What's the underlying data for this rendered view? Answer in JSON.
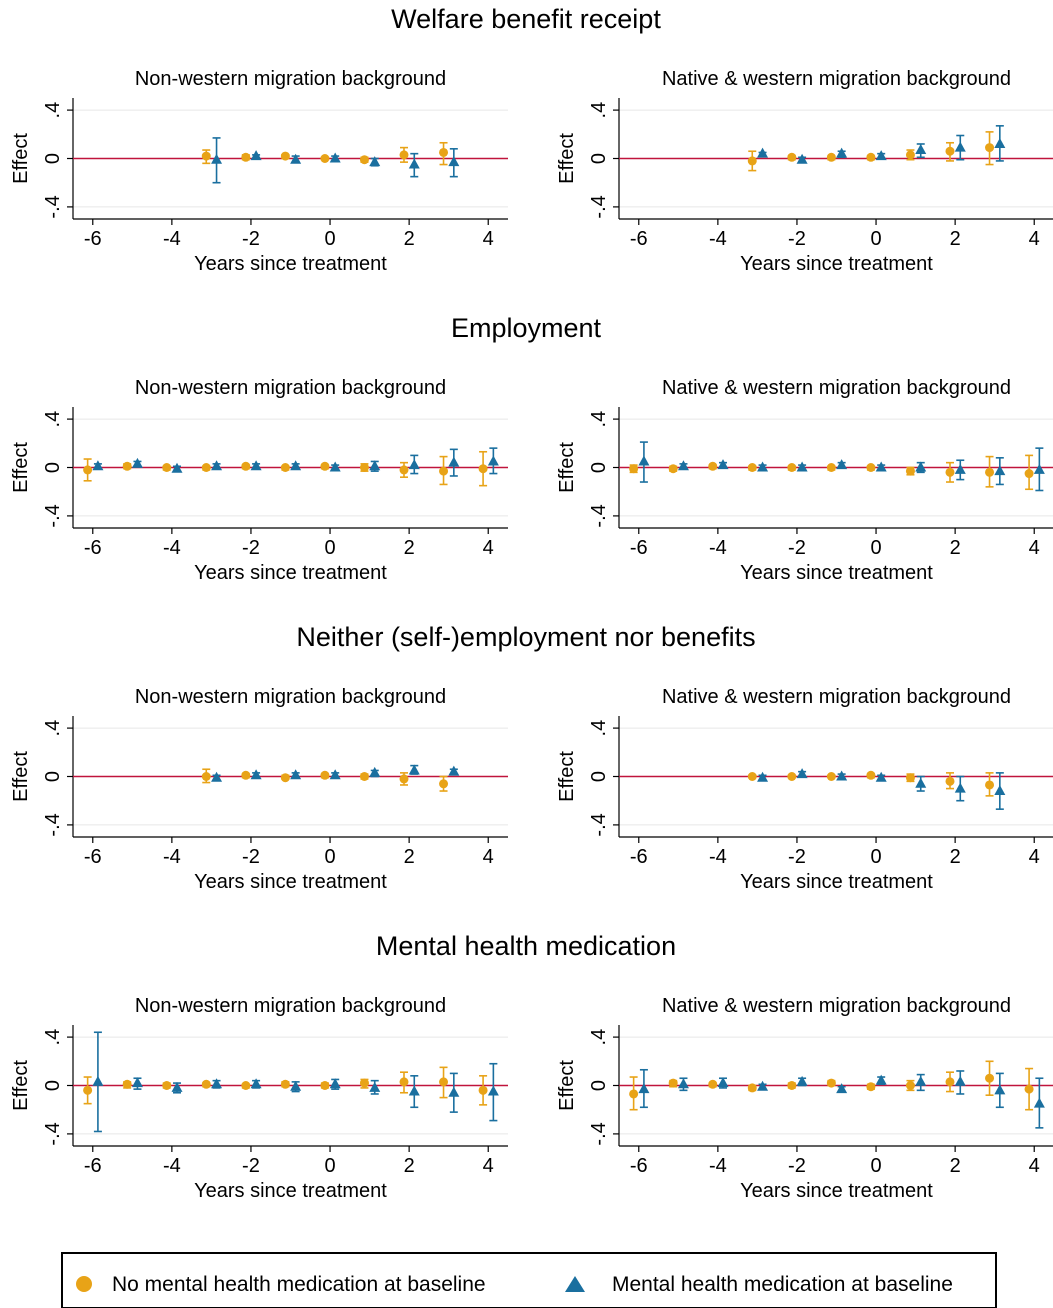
{
  "legend": {
    "series": [
      {
        "name": "No mental health medication at baseline",
        "color": "#E8A317",
        "marker": "circle"
      },
      {
        "name": "Mental health medication at baseline",
        "color": "#1A6F9F",
        "marker": "triangle"
      }
    ]
  },
  "colors": {
    "reference_line": "#C0143C",
    "grid": "#E6E6E6"
  },
  "chart_data": [
    {
      "type": "scatter",
      "title": "Welfare benefit receipt",
      "subtitle": "Non-western migration background",
      "xlabel": "Years since treatment",
      "ylabel": "Effect",
      "xlim": [
        -6.5,
        4.5
      ],
      "ylim": [
        -0.5,
        0.5
      ],
      "xticks": [
        "-6",
        "-4",
        "-2",
        "0",
        "2",
        "4"
      ],
      "yticks": [
        ".4",
        "0",
        "-.4"
      ],
      "reference_y": 0,
      "grid": true,
      "series": [
        {
          "name": "No mental health medication at baseline",
          "x": [
            -3,
            -2,
            -1,
            0,
            1,
            2,
            3
          ],
          "y": [
            0.02,
            0.01,
            0.02,
            0.0,
            -0.01,
            0.03,
            0.05
          ],
          "ci_low": [
            -0.04,
            -0.01,
            0.0,
            -0.01,
            -0.03,
            -0.03,
            -0.05
          ],
          "ci_high": [
            0.07,
            0.03,
            0.03,
            0.01,
            0.01,
            0.09,
            0.13
          ]
        },
        {
          "name": "Mental health medication at baseline",
          "x": [
            -3,
            -2,
            -1,
            0,
            1,
            2,
            3
          ],
          "y": [
            -0.01,
            0.02,
            -0.01,
            0.0,
            -0.03,
            -0.05,
            -0.03
          ],
          "ci_low": [
            -0.2,
            0.0,
            -0.03,
            -0.02,
            -0.06,
            -0.15,
            -0.15
          ],
          "ci_high": [
            0.17,
            0.03,
            0.02,
            0.02,
            0.0,
            0.04,
            0.08
          ]
        }
      ]
    },
    {
      "type": "scatter",
      "title": "Welfare benefit receipt",
      "subtitle": "Native & western migration background",
      "xlabel": "Years since treatment",
      "ylabel": "Effect",
      "xlim": [
        -6.5,
        4.5
      ],
      "ylim": [
        -0.5,
        0.5
      ],
      "xticks": [
        "-6",
        "-4",
        "-2",
        "0",
        "2",
        "4"
      ],
      "yticks": [
        ".4",
        "0",
        "-.4"
      ],
      "reference_y": 0,
      "grid": true,
      "series": [
        {
          "name": "No mental health medication at baseline",
          "x": [
            -3,
            -2,
            -1,
            0,
            1,
            2,
            3
          ],
          "y": [
            -0.02,
            0.01,
            0.01,
            0.01,
            0.03,
            0.06,
            0.09
          ],
          "ci_low": [
            -0.1,
            -0.01,
            -0.01,
            -0.01,
            -0.01,
            -0.02,
            -0.05
          ],
          "ci_high": [
            0.06,
            0.02,
            0.02,
            0.02,
            0.07,
            0.13,
            0.22
          ]
        },
        {
          "name": "Mental health medication at baseline",
          "x": [
            -3,
            -2,
            -1,
            0,
            1,
            2,
            3
          ],
          "y": [
            0.04,
            -0.01,
            0.04,
            0.02,
            0.07,
            0.09,
            0.12
          ],
          "ci_low": [
            0.02,
            -0.03,
            0.01,
            0.0,
            0.01,
            -0.01,
            -0.02
          ],
          "ci_high": [
            0.05,
            0.01,
            0.06,
            0.04,
            0.12,
            0.19,
            0.27
          ]
        }
      ]
    },
    {
      "type": "scatter",
      "title": "Employment",
      "subtitle": "Non-western migration background",
      "xlabel": "Years since treatment",
      "ylabel": "Effect",
      "xlim": [
        -6.5,
        4.5
      ],
      "ylim": [
        -0.5,
        0.5
      ],
      "xticks": [
        "-6",
        "-4",
        "-2",
        "0",
        "2",
        "4"
      ],
      "yticks": [
        ".4",
        "0",
        "-.4"
      ],
      "reference_y": 0,
      "grid": true,
      "series": [
        {
          "name": "No mental health medication at baseline",
          "x": [
            -6,
            -5,
            -4,
            -3,
            -2,
            -1,
            0,
            1,
            2,
            3,
            4
          ],
          "y": [
            -0.02,
            0.01,
            0.0,
            0.0,
            0.01,
            0.0,
            0.01,
            0.0,
            -0.02,
            -0.03,
            -0.01
          ],
          "ci_low": [
            -0.11,
            -0.01,
            -0.02,
            -0.02,
            -0.01,
            -0.02,
            -0.01,
            -0.03,
            -0.08,
            -0.14,
            -0.15
          ],
          "ci_high": [
            0.07,
            0.03,
            0.01,
            0.01,
            0.02,
            0.01,
            0.02,
            0.03,
            0.04,
            0.09,
            0.13
          ]
        },
        {
          "name": "Mental health medication at baseline",
          "x": [
            -6,
            -5,
            -4,
            -3,
            -2,
            -1,
            0,
            1,
            2,
            3,
            4
          ],
          "y": [
            0.01,
            0.03,
            -0.01,
            0.01,
            0.01,
            0.01,
            0.0,
            0.01,
            0.02,
            0.04,
            0.05
          ],
          "ci_low": [
            -0.01,
            0.01,
            -0.03,
            -0.01,
            -0.01,
            -0.01,
            -0.02,
            -0.03,
            -0.05,
            -0.07,
            -0.05
          ],
          "ci_high": [
            0.03,
            0.05,
            0.01,
            0.03,
            0.03,
            0.03,
            0.02,
            0.05,
            0.1,
            0.15,
            0.16
          ]
        }
      ]
    },
    {
      "type": "scatter",
      "title": "Employment",
      "subtitle": "Native & western migration background",
      "xlabel": "Years since treatment",
      "ylabel": "Effect",
      "xlim": [
        -6.5,
        4.5
      ],
      "ylim": [
        -0.5,
        0.5
      ],
      "xticks": [
        "-6",
        "-4",
        "-2",
        "0",
        "2",
        "4"
      ],
      "yticks": [
        ".4",
        "0",
        "-.4"
      ],
      "reference_y": 0,
      "grid": true,
      "series": [
        {
          "name": "No mental health medication at baseline",
          "x": [
            -6,
            -5,
            -4,
            -3,
            -2,
            -1,
            0,
            1,
            2,
            3,
            4
          ],
          "y": [
            -0.01,
            -0.01,
            0.01,
            0.0,
            0.0,
            0.0,
            0.0,
            -0.03,
            -0.04,
            -0.04,
            -0.05
          ],
          "ci_low": [
            -0.04,
            -0.03,
            -0.01,
            -0.02,
            -0.02,
            -0.02,
            -0.02,
            -0.06,
            -0.12,
            -0.16,
            -0.18
          ],
          "ci_high": [
            0.02,
            0.01,
            0.02,
            0.01,
            0.01,
            0.01,
            0.01,
            0.0,
            0.04,
            0.09,
            0.1
          ]
        },
        {
          "name": "Mental health medication at baseline",
          "x": [
            -6,
            -5,
            -4,
            -3,
            -2,
            -1,
            0,
            1,
            2,
            3,
            4
          ],
          "y": [
            0.05,
            0.01,
            0.02,
            0.0,
            0.0,
            0.02,
            0.0,
            0.0,
            -0.02,
            -0.03,
            -0.02
          ],
          "ci_low": [
            -0.12,
            -0.01,
            0.0,
            -0.02,
            -0.02,
            0.0,
            -0.02,
            -0.04,
            -0.1,
            -0.14,
            -0.19
          ],
          "ci_high": [
            0.21,
            0.03,
            0.04,
            0.02,
            0.02,
            0.04,
            0.02,
            0.04,
            0.06,
            0.08,
            0.16
          ]
        }
      ]
    },
    {
      "type": "scatter",
      "title": "Neither (self-)employment nor benefits",
      "subtitle": "Non-western migration background",
      "xlabel": "Years since treatment",
      "ylabel": "Effect",
      "xlim": [
        -6.5,
        4.5
      ],
      "ylim": [
        -0.5,
        0.5
      ],
      "xticks": [
        "-6",
        "-4",
        "-2",
        "0",
        "2",
        "4"
      ],
      "yticks": [
        ".4",
        "0",
        "-.4"
      ],
      "reference_y": 0,
      "grid": true,
      "series": [
        {
          "name": "No mental health medication at baseline",
          "x": [
            -3,
            -2,
            -1,
            0,
            1,
            2,
            3
          ],
          "y": [
            0.0,
            0.01,
            -0.01,
            0.01,
            0.0,
            -0.02,
            -0.06
          ],
          "ci_low": [
            -0.05,
            -0.01,
            -0.02,
            -0.01,
            -0.02,
            -0.07,
            -0.12
          ],
          "ci_high": [
            0.06,
            0.02,
            0.01,
            0.02,
            0.02,
            0.03,
            0.0
          ]
        },
        {
          "name": "Mental health medication at baseline",
          "x": [
            -3,
            -2,
            -1,
            0,
            1,
            2,
            3
          ],
          "y": [
            -0.01,
            0.01,
            0.01,
            0.01,
            0.03,
            0.05,
            0.04
          ],
          "ci_low": [
            -0.03,
            -0.01,
            -0.01,
            -0.01,
            0.0,
            0.02,
            0.02
          ],
          "ci_high": [
            0.01,
            0.03,
            0.03,
            0.03,
            0.05,
            0.09,
            0.06
          ]
        }
      ]
    },
    {
      "type": "scatter",
      "title": "Neither (self-)employment nor benefits",
      "subtitle": "Native & western migration background",
      "xlabel": "Years since treatment",
      "ylabel": "Effect",
      "xlim": [
        -6.5,
        4.5
      ],
      "ylim": [
        -0.5,
        0.5
      ],
      "xticks": [
        "-6",
        "-4",
        "-2",
        "0",
        "2",
        "4"
      ],
      "yticks": [
        ".4",
        "0",
        "-.4"
      ],
      "reference_y": 0,
      "grid": true,
      "series": [
        {
          "name": "No mental health medication at baseline",
          "x": [
            -3,
            -2,
            -1,
            0,
            1,
            2,
            3
          ],
          "y": [
            0.0,
            0.0,
            0.0,
            0.01,
            -0.01,
            -0.04,
            -0.07
          ],
          "ci_low": [
            -0.01,
            -0.01,
            -0.01,
            -0.01,
            -0.04,
            -0.1,
            -0.16
          ],
          "ci_high": [
            0.01,
            0.01,
            0.01,
            0.02,
            0.02,
            0.03,
            0.03
          ]
        },
        {
          "name": "Mental health medication at baseline",
          "x": [
            -3,
            -2,
            -1,
            0,
            1,
            2,
            3
          ],
          "y": [
            -0.01,
            0.02,
            0.0,
            -0.01,
            -0.06,
            -0.1,
            -0.12
          ],
          "ci_low": [
            -0.03,
            0.0,
            -0.02,
            -0.03,
            -0.12,
            -0.2,
            -0.27
          ],
          "ci_high": [
            0.01,
            0.04,
            0.02,
            0.01,
            0.0,
            0.0,
            0.03
          ]
        }
      ]
    },
    {
      "type": "scatter",
      "title": "Mental health medication",
      "subtitle": "Non-western migration background",
      "xlabel": "Years since treatment",
      "ylabel": "Effect",
      "xlim": [
        -6.5,
        4.5
      ],
      "ylim": [
        -0.5,
        0.5
      ],
      "xticks": [
        "-6",
        "-4",
        "-2",
        "0",
        "2",
        "4"
      ],
      "yticks": [
        ".4",
        "0",
        "-.4"
      ],
      "reference_y": 0,
      "grid": true,
      "series": [
        {
          "name": "No mental health medication at baseline",
          "x": [
            -6,
            -5,
            -4,
            -3,
            -2,
            -1,
            0,
            1,
            2,
            3,
            4
          ],
          "y": [
            -0.04,
            0.01,
            0.0,
            0.01,
            0.0,
            0.01,
            0.0,
            0.02,
            0.03,
            0.03,
            -0.04
          ],
          "ci_low": [
            -0.15,
            -0.02,
            -0.02,
            -0.01,
            -0.02,
            -0.01,
            -0.02,
            -0.02,
            -0.06,
            -0.1,
            -0.16
          ],
          "ci_high": [
            0.07,
            0.03,
            0.02,
            0.02,
            0.01,
            0.03,
            0.02,
            0.05,
            0.11,
            0.15,
            0.08
          ]
        },
        {
          "name": "Mental health medication at baseline",
          "x": [
            -6,
            -5,
            -4,
            -3,
            -2,
            -1,
            0,
            1,
            2,
            3,
            4
          ],
          "y": [
            0.03,
            0.02,
            -0.02,
            0.01,
            0.01,
            -0.01,
            0.01,
            -0.02,
            -0.05,
            -0.06,
            -0.05
          ],
          "ci_low": [
            -0.38,
            -0.03,
            -0.06,
            -0.02,
            -0.02,
            -0.05,
            -0.03,
            -0.07,
            -0.18,
            -0.22,
            -0.29
          ],
          "ci_high": [
            0.44,
            0.06,
            0.02,
            0.04,
            0.04,
            0.03,
            0.05,
            0.04,
            0.08,
            0.1,
            0.18
          ]
        }
      ]
    },
    {
      "type": "scatter",
      "title": "Mental health medication",
      "subtitle": "Native & western migration background",
      "xlabel": "Years since treatment",
      "ylabel": "Effect",
      "xlim": [
        -6.5,
        4.5
      ],
      "ylim": [
        -0.5,
        0.5
      ],
      "xticks": [
        "-6",
        "-4",
        "-2",
        "0",
        "2",
        "4"
      ],
      "yticks": [
        ".4",
        "0",
        "-.4"
      ],
      "reference_y": 0,
      "grid": true,
      "series": [
        {
          "name": "No mental health medication at baseline",
          "x": [
            -6,
            -5,
            -4,
            -3,
            -2,
            -1,
            0,
            1,
            2,
            3,
            4
          ],
          "y": [
            -0.07,
            0.02,
            0.01,
            -0.02,
            0.0,
            0.02,
            -0.01,
            0.0,
            0.03,
            0.06,
            -0.03
          ],
          "ci_low": [
            -0.2,
            -0.01,
            -0.01,
            -0.04,
            -0.02,
            0.0,
            -0.03,
            -0.04,
            -0.05,
            -0.08,
            -0.2
          ],
          "ci_high": [
            0.07,
            0.04,
            0.02,
            0.0,
            0.02,
            0.04,
            0.01,
            0.04,
            0.11,
            0.2,
            0.14
          ]
        },
        {
          "name": "Mental health medication at baseline",
          "x": [
            -6,
            -5,
            -4,
            -3,
            -2,
            -1,
            0,
            1,
            2,
            3,
            4
          ],
          "y": [
            -0.03,
            0.01,
            0.02,
            -0.01,
            0.03,
            -0.03,
            0.04,
            0.03,
            0.03,
            -0.04,
            -0.15
          ],
          "ci_low": [
            -0.18,
            -0.04,
            -0.02,
            -0.03,
            0.0,
            -0.05,
            0.01,
            -0.04,
            -0.07,
            -0.18,
            -0.35
          ],
          "ci_high": [
            0.13,
            0.06,
            0.06,
            0.01,
            0.06,
            -0.01,
            0.07,
            0.09,
            0.12,
            0.1,
            0.06
          ]
        }
      ]
    }
  ]
}
